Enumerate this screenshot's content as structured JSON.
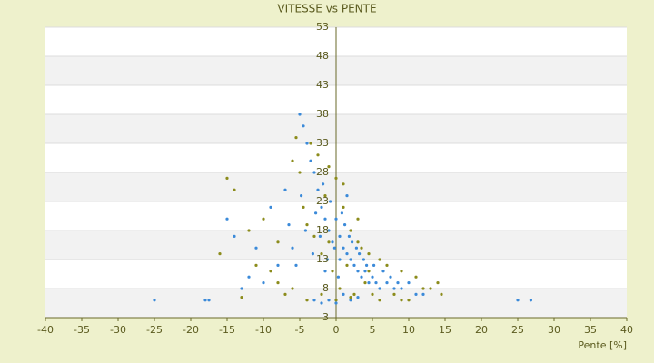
{
  "chart_data": {
    "type": "scatter",
    "title": "VITESSE vs PENTE",
    "x_label": "Pente [%]",
    "xlim": [
      -40,
      40
    ],
    "xticks": [
      -40,
      -35,
      -30,
      -25,
      -20,
      -15,
      -10,
      -5,
      0,
      5,
      10,
      15,
      20,
      25,
      30,
      35,
      40
    ],
    "ylim": [
      3,
      53
    ],
    "yticks": [
      3,
      8,
      13,
      18,
      23,
      28,
      33,
      38,
      43,
      48,
      53
    ],
    "grid": true,
    "series": [
      {
        "color": "#3b8ad9",
        "x": [
          -25,
          -18,
          -17.5,
          25,
          26.8,
          -13,
          -12,
          -10,
          -8,
          -6,
          -5,
          -4.5,
          -4,
          -3.5,
          -3,
          -2.5,
          -2,
          -1.5,
          -1,
          -0.5,
          0,
          0.5,
          1,
          1.5,
          2,
          2.5,
          3,
          3.5,
          4,
          4.5,
          5,
          5.5,
          6,
          7,
          8,
          9,
          10,
          11,
          12,
          -15,
          -14,
          -11,
          -9,
          -7,
          -6.5,
          -5.5,
          -4.8,
          -4.2,
          -3.2,
          -2.8,
          -2.2,
          -1.8,
          -1.2,
          -0.8,
          -0.2,
          0.3,
          0.8,
          1.2,
          1.8,
          2.2,
          2.8,
          3.2,
          3.8,
          4.2,
          5.2,
          6.5,
          7.5,
          8.5,
          -3,
          -2,
          -1,
          0,
          1,
          2,
          3,
          -1.5,
          0.5,
          1.5
        ],
        "values": [
          6,
          6,
          6,
          6,
          6,
          8,
          10,
          9,
          12,
          15,
          38,
          36,
          33,
          30,
          28,
          25,
          22,
          20,
          18,
          16,
          20,
          17,
          15,
          14,
          13,
          12,
          11,
          10,
          11,
          9,
          10,
          9,
          8,
          9,
          8,
          8,
          9,
          7,
          7,
          20,
          17,
          15,
          22,
          25,
          19,
          12,
          24,
          18,
          14,
          21,
          17,
          26,
          13,
          23,
          15,
          10,
          21,
          19,
          17,
          16,
          15,
          14,
          13,
          12,
          12,
          11,
          10,
          9,
          6,
          5.5,
          6,
          5.5,
          7,
          6,
          6.5,
          11,
          13,
          24
        ]
      },
      {
        "color": "#8c8c1c",
        "x": [
          -16,
          -15,
          -14,
          -12,
          -11,
          -10,
          -9,
          -8,
          -7,
          -6,
          -5.5,
          -5,
          -4.5,
          -4,
          -3.5,
          -3,
          -2.5,
          -2,
          -1.5,
          -1,
          -0.5,
          0,
          0.5,
          1,
          1.5,
          2,
          2.5,
          3,
          3.5,
          4,
          4.5,
          5,
          6,
          7,
          8,
          9,
          10,
          11,
          12,
          13,
          14,
          14.5,
          -4,
          -2,
          0,
          2,
          6,
          9,
          -13,
          -8,
          -6,
          3,
          1,
          -1,
          4.5
        ],
        "values": [
          14,
          27,
          25,
          18,
          12,
          20,
          11,
          16,
          7,
          30,
          34,
          28,
          22,
          19,
          33,
          17,
          31,
          14,
          24,
          29,
          11,
          27,
          8,
          22,
          12,
          18,
          7,
          20,
          15,
          9,
          14,
          7,
          13,
          12,
          7,
          11,
          6,
          10,
          8,
          8,
          9,
          7,
          6,
          7,
          6,
          6.5,
          6,
          6,
          6.5,
          9,
          8,
          16,
          26,
          16,
          11
        ]
      }
    ]
  }
}
